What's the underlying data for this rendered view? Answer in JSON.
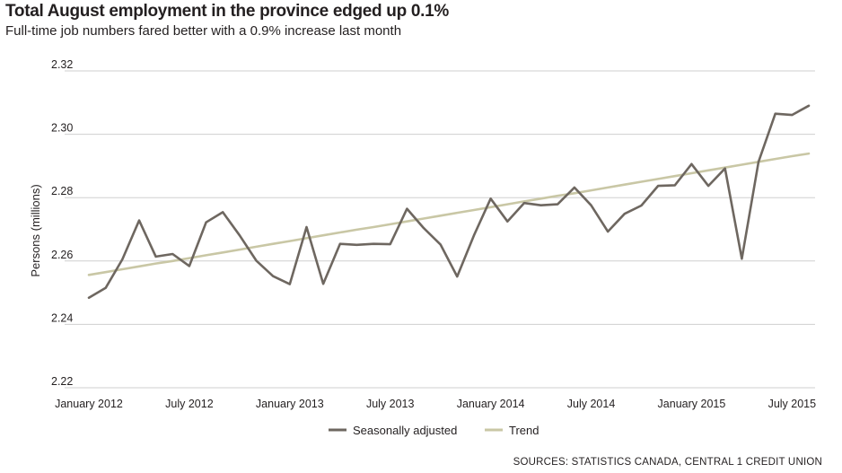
{
  "chart_data": {
    "type": "line",
    "title": "Total August employment in the province edged up 0.1%",
    "subtitle": "Full-time job numbers fared better with a 0.9% increase last month",
    "ylabel": "Persons (millions)",
    "xlabel": "",
    "ylim": [
      2.22,
      2.32
    ],
    "yticks": [
      2.32,
      2.3,
      2.28,
      2.26,
      2.24,
      2.22
    ],
    "ytick_labels": [
      "2.32",
      "2.30",
      "2.28",
      "2.26",
      "2.24",
      "2.22"
    ],
    "xlim": [
      0,
      43
    ],
    "xticks": [
      {
        "index": 0,
        "label": "January 2012"
      },
      {
        "index": 6,
        "label": "July 2012"
      },
      {
        "index": 12,
        "label": "January 2013"
      },
      {
        "index": 18,
        "label": "July 2013"
      },
      {
        "index": 24,
        "label": "January 2014"
      },
      {
        "index": 30,
        "label": "July 2014"
      },
      {
        "index": 36,
        "label": "January 2015"
      },
      {
        "index": 42,
        "label": "July 2015"
      }
    ],
    "grid": true,
    "legend_position": "bottom-center",
    "series": [
      {
        "name": "Seasonally adjusted",
        "color": "#6e6760",
        "values": [
          2.2484,
          2.2515,
          2.2605,
          2.2728,
          2.2614,
          2.2622,
          2.2584,
          2.2722,
          2.2754,
          2.2681,
          2.2601,
          2.2552,
          2.2527,
          2.2707,
          2.2528,
          2.2654,
          2.2651,
          2.2654,
          2.2653,
          2.2765,
          2.2704,
          2.2652,
          2.2551,
          2.2681,
          2.2797,
          2.2725,
          2.2783,
          2.2776,
          2.2779,
          2.2832,
          2.2776,
          2.2693,
          2.2749,
          2.2775,
          2.2837,
          2.2839,
          2.2906,
          2.2837,
          2.2892,
          2.2607,
          2.2913,
          2.3065,
          2.3061,
          2.309
        ]
      },
      {
        "name": "Trend",
        "color": "#c9c7a5",
        "values": [
          2.2556,
          2.2565,
          2.2574,
          2.2583,
          2.2592,
          2.26,
          2.2609,
          2.2618,
          2.2627,
          2.2636,
          2.2645,
          2.2654,
          2.2663,
          2.2672,
          2.2681,
          2.269,
          2.2699,
          2.2707,
          2.2716,
          2.2725,
          2.2734,
          2.2743,
          2.2752,
          2.2761,
          2.277,
          2.2779,
          2.2788,
          2.2797,
          2.2806,
          2.2814,
          2.2823,
          2.2832,
          2.2841,
          2.285,
          2.2859,
          2.2868,
          2.2877,
          2.2886,
          2.2895,
          2.2904,
          2.2913,
          2.2922,
          2.2931,
          2.2939
        ]
      }
    ],
    "source": "SOURCES: STATISTICS CANADA, CENTRAL 1 CREDIT  UNION"
  }
}
